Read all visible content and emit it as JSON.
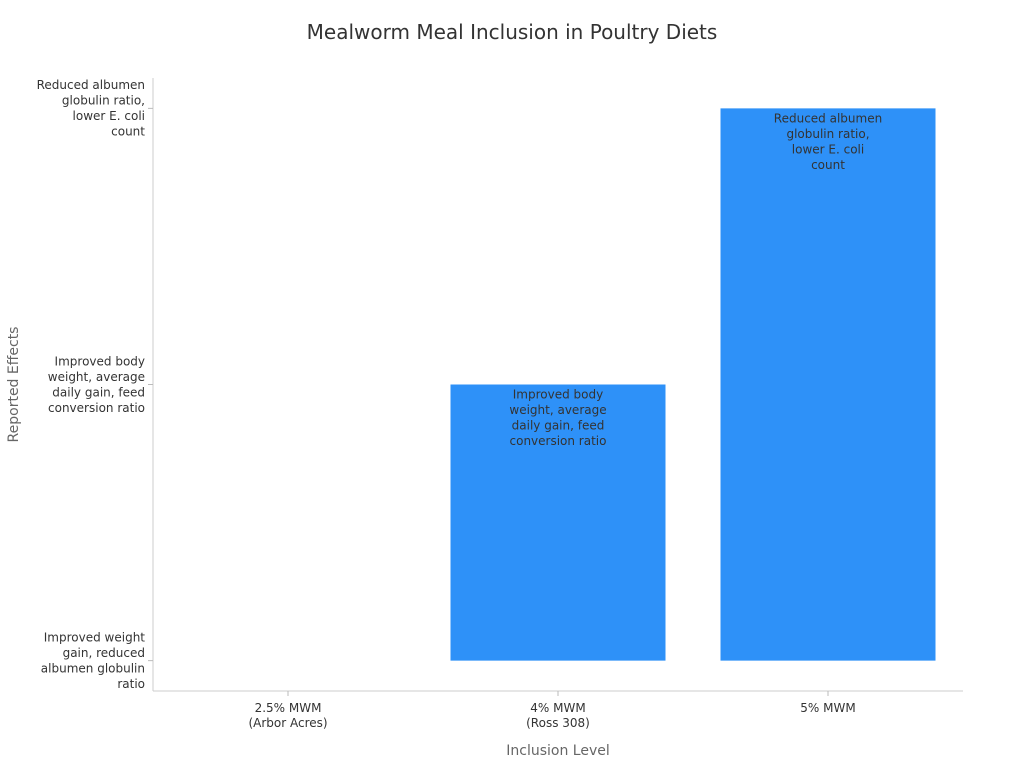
{
  "chart_data": {
    "type": "bar",
    "title": "Mealworm Meal Inclusion in Poultry Diets",
    "xlabel": "Inclusion Level",
    "ylabel": "Reported Effects",
    "categories": [
      [
        "2.5% MWM",
        "(Arbor Acres)"
      ],
      [
        "4% MWM",
        "(Ross 308)"
      ],
      [
        "5% MWM"
      ]
    ],
    "y_categories": [
      [
        "Improved weight",
        "gain, reduced",
        "albumen globulin",
        "ratio"
      ],
      [
        "Improved body",
        "weight, average",
        "daily gain, feed",
        "conversion ratio"
      ],
      [
        "Reduced albumen",
        "globulin ratio,",
        "lower E. coli",
        "count"
      ]
    ],
    "values": [
      0,
      1,
      2
    ],
    "bar_labels": [
      [],
      [
        "Improved body",
        "weight, average",
        "daily gain, feed",
        "conversion ratio"
      ],
      [
        "Reduced albumen",
        "globulin ratio,",
        "lower E. coli",
        "count"
      ]
    ],
    "ylim": [
      -0.11,
      2.11
    ],
    "grid": false,
    "colors": {
      "bar": "#2e91f8",
      "text": "#333333",
      "axis_title": "#666666",
      "axis": "#cccccc"
    }
  }
}
